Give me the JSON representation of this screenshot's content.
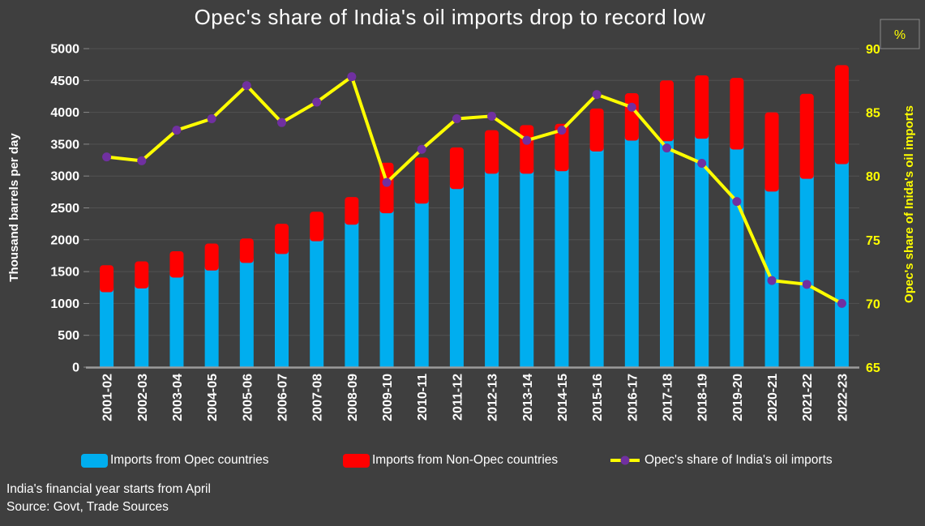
{
  "chart_data": {
    "type": "bar",
    "subtype": "stacked-bar-with-line",
    "title": "Opec's share of India's oil imports drop to record low",
    "categories": [
      "2001-02",
      "2002-03",
      "2003-04",
      "2004-05",
      "2005-06",
      "2006-07",
      "2007-08",
      "2008-09",
      "2009-10",
      "2010-11",
      "2011-12",
      "2012-13",
      "2013-14",
      "2014-15",
      "2015-16",
      "2016-17",
      "2017-18",
      "2018-19",
      "2019-20",
      "2020-21",
      "2021-22",
      "2022-23"
    ],
    "series": [
      {
        "name": "Imports from Opec countries",
        "type": "bar",
        "stack": true,
        "color": "#00AEEF",
        "values": [
          1240,
          1300,
          1470,
          1580,
          1700,
          1840,
          2040,
          2300,
          2480,
          2630,
          2860,
          3100,
          3100,
          3140,
          3450,
          3620,
          3610,
          3650,
          3480,
          2820,
          3020,
          3250
        ]
      },
      {
        "name": "Imports from Non-Opec countries",
        "type": "bar",
        "stack": true,
        "color": "#FF0000",
        "values": [
          360,
          360,
          350,
          360,
          320,
          410,
          400,
          370,
          730,
          660,
          590,
          620,
          700,
          680,
          610,
          680,
          890,
          930,
          1060,
          1180,
          1270,
          1490
        ]
      },
      {
        "name": "Opec's share of India's oil imports",
        "type": "line",
        "axis": "right",
        "color": "#FFFF00",
        "marker_color": "#7030A0",
        "values": [
          81.5,
          81.2,
          83.6,
          84.5,
          87.1,
          84.2,
          85.8,
          87.8,
          79.5,
          82.1,
          84.5,
          84.7,
          82.8,
          83.6,
          86.4,
          85.4,
          82.2,
          81.0,
          78.0,
          71.8,
          71.5,
          70.0
        ]
      }
    ],
    "left_axis": {
      "title": "Thousand barrels per day",
      "min": 0,
      "max": 5000,
      "step": 500
    },
    "right_axis": {
      "title": "Opec's share of Inida's oil imports",
      "unit": "%",
      "min": 65,
      "max": 90,
      "step": 5
    },
    "grid": "horizontal",
    "legend_position": "bottom",
    "colors": {
      "background": "#3F3F3F",
      "gridline": "#525252",
      "baseline": "#9C9C9C",
      "left_axis_text": "#FFFFFF",
      "right_axis_text": "#FFFF00",
      "title_text": "#FFFFFF"
    },
    "footnotes": [
      "India's financial year starts from April",
      "Source: Govt, Trade Sources"
    ]
  }
}
